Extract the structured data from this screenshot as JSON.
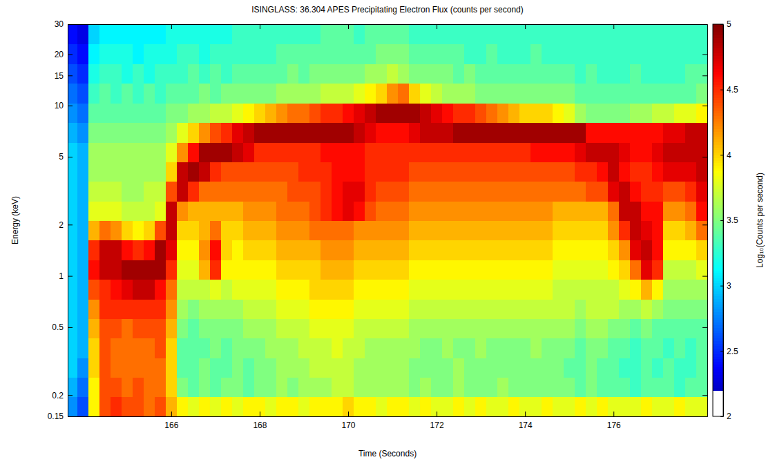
{
  "chart_data": {
    "type": "heatmap",
    "title": "ISINGLASS: 36.304 APES Precipitating Electron Flux (counts per second)",
    "x_label": "Time (Seconds)",
    "y_label": "Energy (keV)",
    "log": "y",
    "xlim": [
      163.66,
      178.12
    ],
    "xticks": [
      166,
      168,
      170,
      172,
      174,
      176
    ],
    "ylim": [
      0.15,
      30
    ],
    "yticks": [
      0.15,
      0.2,
      0.5,
      1,
      2,
      5,
      10,
      15,
      20,
      30
    ],
    "x": [
      163.75,
      164,
      164.25,
      164.5,
      164.75,
      165,
      165.25,
      165.5,
      165.75,
      166,
      166.25,
      166.5,
      166.75,
      167,
      167.25,
      167.5,
      167.75,
      168,
      168.25,
      168.5,
      168.75,
      169,
      169.25,
      169.5,
      169.75,
      170,
      170.25,
      170.5,
      170.75,
      171,
      171.25,
      171.5,
      171.75,
      172,
      172.25,
      172.5,
      172.75,
      173,
      173.25,
      173.5,
      173.75,
      174,
      174.25,
      174.5,
      174.75,
      175,
      175.25,
      175.5,
      175.75,
      176,
      176.25,
      176.5,
      176.75,
      177,
      177.25,
      177.5,
      177.75,
      178,
      178.25
    ],
    "y": [
      0.171,
      0.223,
      0.29,
      0.378,
      0.493,
      0.642,
      0.837,
      1.09,
      1.42,
      1.85,
      2.41,
      3.14,
      4.09,
      5.33,
      6.95,
      9.06,
      11.8,
      15.4,
      20.1,
      26.2
    ],
    "z": [
      [
        2.8,
        2.6,
        3.9,
        4.4,
        4.5,
        4.4,
        4.4,
        4.3,
        4.4,
        4.1,
        3.9,
        3.8,
        3.9,
        3.8,
        3.9,
        3.8,
        3.9,
        3.9,
        3.8,
        3.9,
        3.9,
        3.8,
        3.9,
        3.9,
        3.9,
        4.0,
        3.9,
        3.9,
        3.8,
        3.9,
        3.9,
        3.8,
        3.9,
        3.8,
        3.8,
        3.9,
        3.8,
        3.9,
        3.8,
        3.8,
        3.9,
        3.8,
        3.8,
        3.9,
        3.8,
        3.8,
        3.9,
        3.8,
        3.9,
        3.8,
        3.8,
        3.8,
        3.9,
        3.8,
        3.8,
        3.9,
        3.8,
        3.8,
        3.9
      ],
      [
        2.9,
        2.7,
        3.9,
        4.4,
        4.4,
        4.3,
        4.4,
        4.3,
        4.3,
        4.0,
        3.5,
        3.4,
        3.5,
        3.4,
        3.5,
        3.5,
        3.4,
        3.5,
        3.5,
        3.6,
        3.5,
        3.6,
        3.6,
        3.6,
        3.7,
        3.7,
        3.6,
        3.6,
        3.6,
        3.6,
        3.6,
        3.5,
        3.6,
        3.5,
        3.5,
        3.6,
        3.5,
        3.5,
        3.5,
        3.6,
        3.5,
        3.5,
        3.5,
        3.5,
        3.5,
        3.5,
        3.4,
        3.5,
        3.4,
        3.4,
        3.4,
        3.3,
        3.4,
        3.4,
        3.4,
        3.3,
        3.4,
        3.4,
        3.3
      ],
      [
        3.0,
        2.8,
        4.0,
        4.4,
        4.3,
        4.3,
        4.3,
        4.3,
        4.3,
        4.0,
        3.4,
        3.4,
        3.5,
        3.4,
        3.4,
        3.5,
        3.4,
        3.5,
        3.5,
        3.6,
        3.6,
        3.6,
        3.7,
        3.7,
        3.7,
        3.7,
        3.6,
        3.6,
        3.6,
        3.6,
        3.6,
        3.5,
        3.5,
        3.5,
        3.5,
        3.6,
        3.5,
        3.5,
        3.5,
        3.5,
        3.5,
        3.5,
        3.5,
        3.5,
        3.5,
        3.4,
        3.4,
        3.5,
        3.4,
        3.4,
        3.3,
        3.3,
        3.4,
        3.3,
        3.4,
        3.3,
        3.3,
        3.4,
        3.3
      ],
      [
        3.0,
        2.9,
        4.0,
        4.4,
        4.3,
        4.3,
        4.3,
        4.3,
        4.4,
        4.0,
        3.4,
        3.4,
        3.4,
        3.5,
        3.4,
        3.5,
        3.5,
        3.5,
        3.6,
        3.6,
        3.6,
        3.7,
        3.7,
        3.7,
        3.8,
        3.7,
        3.7,
        3.6,
        3.6,
        3.6,
        3.6,
        3.6,
        3.5,
        3.5,
        3.6,
        3.5,
        3.5,
        3.6,
        3.5,
        3.5,
        3.5,
        3.5,
        3.6,
        3.5,
        3.5,
        3.5,
        3.4,
        3.5,
        3.5,
        3.4,
        3.4,
        3.3,
        3.4,
        3.4,
        3.3,
        3.4,
        3.3,
        3.4,
        3.3
      ],
      [
        3.0,
        2.9,
        4.1,
        4.4,
        4.4,
        4.3,
        4.4,
        4.4,
        4.4,
        4.1,
        3.5,
        3.4,
        3.5,
        3.5,
        3.5,
        3.5,
        3.6,
        3.6,
        3.6,
        3.7,
        3.7,
        3.7,
        3.8,
        3.8,
        3.8,
        3.8,
        3.7,
        3.7,
        3.7,
        3.7,
        3.7,
        3.6,
        3.6,
        3.6,
        3.6,
        3.6,
        3.6,
        3.6,
        3.6,
        3.6,
        3.6,
        3.6,
        3.6,
        3.6,
        3.6,
        3.6,
        3.5,
        3.6,
        3.6,
        3.5,
        3.5,
        3.4,
        3.5,
        3.4,
        3.4,
        3.4,
        3.4,
        3.4,
        3.4
      ],
      [
        3.0,
        2.9,
        4.2,
        4.5,
        4.5,
        4.5,
        4.5,
        4.5,
        4.5,
        4.2,
        3.6,
        3.5,
        3.6,
        3.6,
        3.6,
        3.6,
        3.7,
        3.7,
        3.7,
        3.8,
        3.8,
        3.8,
        3.9,
        3.9,
        3.9,
        3.9,
        3.8,
        3.8,
        3.8,
        3.8,
        3.8,
        3.7,
        3.7,
        3.7,
        3.7,
        3.7,
        3.7,
        3.7,
        3.7,
        3.7,
        3.7,
        3.7,
        3.7,
        3.7,
        3.7,
        3.7,
        3.6,
        3.7,
        3.7,
        3.7,
        3.6,
        3.6,
        3.7,
        3.6,
        3.5,
        3.5,
        3.5,
        3.5,
        3.5
      ],
      [
        3.0,
        2.9,
        4.4,
        4.5,
        4.6,
        4.7,
        4.8,
        4.8,
        4.6,
        4.3,
        3.7,
        3.7,
        3.7,
        3.8,
        3.7,
        3.8,
        3.8,
        3.8,
        3.8,
        3.9,
        3.9,
        3.9,
        4.0,
        4.0,
        4.0,
        4.0,
        3.9,
        3.9,
        3.9,
        3.9,
        3.9,
        3.8,
        3.8,
        3.8,
        3.8,
        3.8,
        3.8,
        3.8,
        3.8,
        3.8,
        3.8,
        3.8,
        3.8,
        3.8,
        3.7,
        3.7,
        3.7,
        3.7,
        3.7,
        3.7,
        3.8,
        3.9,
        4.1,
        3.9,
        3.6,
        3.6,
        3.6,
        3.6,
        3.6
      ],
      [
        3.0,
        2.9,
        4.6,
        4.8,
        4.8,
        4.9,
        4.9,
        4.9,
        4.9,
        4.5,
        3.8,
        3.8,
        4.1,
        4.5,
        3.9,
        3.9,
        3.9,
        3.9,
        3.9,
        4.0,
        4.0,
        4.0,
        4.0,
        4.1,
        4.1,
        4.1,
        4.0,
        4.0,
        4.0,
        4.0,
        4.0,
        3.9,
        3.9,
        3.9,
        3.9,
        3.9,
        3.9,
        3.9,
        3.9,
        3.9,
        3.9,
        3.9,
        3.9,
        3.9,
        3.8,
        3.8,
        3.8,
        3.8,
        3.8,
        3.9,
        4.0,
        4.3,
        4.7,
        4.5,
        3.7,
        3.7,
        3.7,
        3.8,
        3.7
      ],
      [
        3.0,
        2.9,
        4.5,
        4.8,
        4.8,
        4.6,
        4.5,
        4.6,
        4.9,
        4.7,
        3.9,
        3.9,
        4.2,
        4.6,
        4.0,
        3.9,
        4.0,
        4.0,
        4.0,
        4.1,
        4.1,
        4.1,
        4.1,
        4.2,
        4.2,
        4.2,
        4.1,
        4.1,
        4.1,
        4.1,
        4.1,
        4.0,
        4.0,
        4.0,
        4.0,
        4.0,
        4.0,
        4.0,
        4.0,
        4.0,
        4.0,
        4.0,
        4.0,
        4.0,
        3.9,
        3.9,
        3.9,
        3.9,
        3.9,
        4.0,
        4.2,
        4.7,
        4.8,
        4.6,
        3.9,
        3.9,
        3.9,
        4.0,
        3.9
      ],
      [
        3.0,
        2.9,
        4.1,
        4.3,
        4.2,
        4.0,
        3.9,
        4.0,
        4.4,
        4.8,
        4.0,
        4.0,
        4.1,
        4.3,
        4.0,
        4.0,
        4.1,
        4.1,
        4.1,
        4.2,
        4.2,
        4.2,
        4.3,
        4.3,
        4.3,
        4.3,
        4.2,
        4.2,
        4.2,
        4.2,
        4.2,
        4.1,
        4.1,
        4.1,
        4.1,
        4.1,
        4.1,
        4.1,
        4.1,
        4.1,
        4.1,
        4.1,
        4.1,
        4.1,
        4.0,
        4.0,
        4.0,
        4.0,
        4.0,
        4.2,
        4.5,
        4.8,
        4.7,
        4.6,
        4.0,
        4.0,
        4.1,
        4.3,
        4.1
      ],
      [
        3.0,
        2.9,
        3.8,
        3.8,
        3.8,
        3.7,
        3.7,
        3.7,
        3.8,
        4.8,
        4.2,
        4.1,
        4.1,
        4.1,
        4.1,
        4.1,
        4.2,
        4.2,
        4.2,
        4.3,
        4.3,
        4.3,
        4.4,
        4.5,
        4.6,
        4.7,
        4.6,
        4.4,
        4.3,
        4.3,
        4.3,
        4.2,
        4.2,
        4.2,
        4.2,
        4.2,
        4.2,
        4.2,
        4.2,
        4.2,
        4.2,
        4.2,
        4.2,
        4.2,
        4.1,
        4.1,
        4.1,
        4.1,
        4.1,
        4.3,
        4.8,
        4.8,
        4.6,
        4.6,
        4.2,
        4.2,
        4.3,
        4.6,
        4.3
      ],
      [
        3.0,
        2.9,
        3.7,
        3.7,
        3.7,
        3.6,
        3.6,
        3.7,
        3.7,
        4.4,
        4.8,
        4.5,
        4.3,
        4.3,
        4.3,
        4.3,
        4.3,
        4.3,
        4.3,
        4.3,
        4.4,
        4.4,
        4.4,
        4.5,
        4.6,
        4.7,
        4.7,
        4.5,
        4.4,
        4.4,
        4.4,
        4.3,
        4.3,
        4.3,
        4.3,
        4.3,
        4.3,
        4.3,
        4.3,
        4.3,
        4.3,
        4.3,
        4.3,
        4.3,
        4.3,
        4.3,
        4.3,
        4.4,
        4.4,
        4.7,
        4.8,
        4.6,
        4.5,
        4.5,
        4.4,
        4.4,
        4.5,
        4.7,
        4.5
      ],
      [
        3.0,
        2.9,
        3.6,
        3.6,
        3.6,
        3.6,
        3.6,
        3.6,
        3.6,
        4.0,
        4.8,
        4.9,
        4.8,
        4.5,
        4.4,
        4.4,
        4.4,
        4.4,
        4.4,
        4.4,
        4.4,
        4.5,
        4.5,
        4.5,
        4.6,
        4.6,
        4.6,
        4.5,
        4.5,
        4.5,
        4.5,
        4.4,
        4.4,
        4.4,
        4.4,
        4.4,
        4.4,
        4.4,
        4.4,
        4.4,
        4.4,
        4.4,
        4.4,
        4.4,
        4.4,
        4.4,
        4.5,
        4.5,
        4.6,
        4.8,
        4.6,
        4.5,
        4.5,
        4.6,
        4.7,
        4.7,
        4.7,
        4.8,
        4.7
      ],
      [
        3.0,
        2.9,
        3.6,
        3.6,
        3.6,
        3.6,
        3.6,
        3.6,
        3.6,
        3.8,
        4.2,
        4.6,
        4.9,
        4.9,
        4.9,
        4.8,
        4.7,
        4.5,
        4.5,
        4.5,
        4.5,
        4.5,
        4.5,
        4.6,
        4.6,
        4.6,
        4.6,
        4.5,
        4.5,
        4.5,
        4.5,
        4.5,
        4.5,
        4.5,
        4.5,
        4.5,
        4.5,
        4.5,
        4.5,
        4.5,
        4.5,
        4.5,
        4.6,
        4.6,
        4.6,
        4.6,
        4.7,
        4.8,
        4.8,
        4.8,
        4.7,
        4.6,
        4.6,
        4.7,
        4.8,
        4.8,
        4.8,
        4.8,
        4.8
      ],
      [
        2.9,
        2.8,
        3.5,
        3.5,
        3.5,
        3.5,
        3.5,
        3.5,
        3.5,
        3.6,
        3.8,
        4.0,
        4.2,
        4.4,
        4.5,
        4.7,
        4.8,
        4.9,
        4.9,
        4.9,
        4.9,
        4.9,
        4.9,
        4.9,
        4.9,
        4.9,
        4.8,
        4.7,
        4.6,
        4.6,
        4.6,
        4.7,
        4.8,
        4.8,
        4.8,
        4.9,
        4.9,
        4.9,
        4.9,
        4.9,
        4.9,
        4.9,
        4.9,
        4.9,
        4.9,
        4.9,
        4.9,
        4.6,
        4.6,
        4.6,
        4.6,
        4.6,
        4.6,
        4.6,
        4.7,
        4.7,
        4.8,
        4.8,
        4.8
      ],
      [
        2.8,
        2.7,
        3.4,
        3.4,
        3.4,
        3.4,
        3.4,
        3.4,
        3.4,
        3.5,
        3.5,
        3.6,
        3.6,
        3.7,
        3.7,
        3.8,
        3.9,
        4.0,
        4.1,
        4.2,
        4.3,
        4.3,
        4.4,
        4.5,
        4.5,
        4.6,
        4.7,
        4.8,
        4.9,
        4.9,
        4.9,
        4.9,
        4.8,
        4.7,
        4.6,
        4.5,
        4.5,
        4.4,
        4.3,
        4.2,
        4.1,
        4.0,
        4.0,
        4.0,
        3.9,
        3.8,
        3.6,
        3.5,
        3.5,
        3.5,
        3.5,
        3.6,
        3.6,
        3.7,
        3.7,
        3.8,
        3.8,
        3.9,
        4.0
      ],
      [
        2.7,
        2.6,
        3.3,
        3.4,
        3.3,
        3.4,
        3.3,
        3.4,
        3.3,
        3.4,
        3.4,
        3.4,
        3.5,
        3.4,
        3.5,
        3.5,
        3.5,
        3.5,
        3.5,
        3.6,
        3.6,
        3.6,
        3.6,
        3.7,
        3.7,
        3.7,
        3.8,
        3.9,
        4.0,
        4.2,
        4.3,
        4.0,
        3.8,
        3.7,
        3.6,
        3.6,
        3.6,
        3.5,
        3.5,
        3.5,
        3.5,
        3.5,
        3.5,
        3.5,
        3.5,
        3.5,
        3.4,
        3.4,
        3.4,
        3.4,
        3.4,
        3.4,
        3.4,
        3.4,
        3.4,
        3.4,
        3.4,
        3.5,
        3.5
      ],
      [
        2.6,
        2.5,
        3.2,
        3.3,
        3.3,
        3.2,
        3.3,
        3.2,
        3.3,
        3.3,
        3.3,
        3.4,
        3.3,
        3.4,
        3.3,
        3.4,
        3.4,
        3.4,
        3.4,
        3.4,
        3.5,
        3.4,
        3.5,
        3.5,
        3.5,
        3.5,
        3.5,
        3.6,
        3.6,
        3.7,
        3.6,
        3.5,
        3.5,
        3.5,
        3.5,
        3.4,
        3.5,
        3.4,
        3.4,
        3.4,
        3.4,
        3.4,
        3.4,
        3.4,
        3.4,
        3.4,
        3.3,
        3.4,
        3.3,
        3.3,
        3.3,
        3.4,
        3.3,
        3.3,
        3.3,
        3.3,
        3.4,
        3.4,
        3.3
      ],
      [
        2.5,
        2.4,
        3.1,
        3.2,
        3.2,
        3.2,
        3.1,
        3.2,
        3.2,
        3.2,
        3.3,
        3.3,
        3.2,
        3.3,
        3.3,
        3.3,
        3.3,
        3.3,
        3.3,
        3.4,
        3.4,
        3.4,
        3.4,
        3.4,
        3.4,
        3.4,
        3.4,
        3.4,
        3.5,
        3.5,
        3.5,
        3.4,
        3.4,
        3.4,
        3.4,
        3.4,
        3.3,
        3.3,
        3.4,
        3.3,
        3.3,
        3.3,
        3.4,
        3.3,
        3.3,
        3.3,
        3.3,
        3.3,
        3.3,
        3.3,
        3.3,
        3.3,
        3.3,
        3.3,
        3.3,
        3.3,
        3.3,
        3.3,
        3.3
      ],
      [
        2.4,
        2.3,
        3.0,
        3.1,
        3.1,
        3.1,
        3.1,
        3.1,
        3.1,
        3.2,
        3.2,
        3.2,
        3.2,
        3.2,
        3.2,
        3.3,
        3.3,
        3.3,
        3.3,
        3.3,
        3.3,
        3.3,
        3.3,
        3.4,
        3.4,
        3.4,
        3.3,
        3.4,
        3.4,
        3.4,
        3.4,
        3.3,
        3.3,
        3.3,
        3.3,
        3.3,
        3.3,
        3.3,
        3.3,
        3.3,
        3.3,
        3.3,
        3.3,
        3.3,
        3.3,
        3.3,
        3.3,
        3.3,
        3.3,
        3.3,
        3.3,
        3.3,
        3.3,
        3.3,
        3.3,
        3.3,
        3.3,
        3.3,
        3.3
      ]
    ],
    "colorbar": {
      "label": "Log₁₀(Counts per second)",
      "lim": [
        2,
        5
      ],
      "ticks": [
        2,
        2.5,
        3,
        3.5,
        4,
        4.5,
        5
      ]
    }
  }
}
